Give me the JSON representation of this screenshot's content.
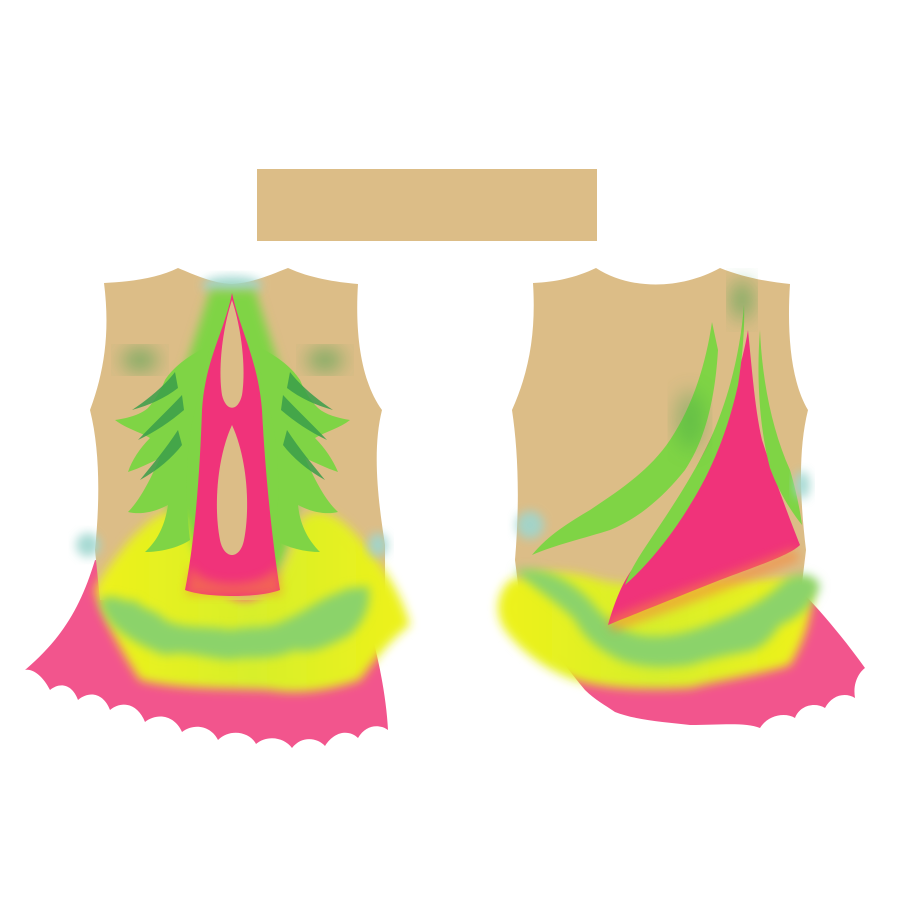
{
  "design": {
    "colors": {
      "background": "#ffffff",
      "skin": "#dcbd87",
      "neon_pink": "#f0337a",
      "skirt_pink": "#f2558d",
      "lime_green": "#7fd445",
      "light_green": "#8bd36a",
      "dark_green": "#3a9e4a",
      "neon_yellow": "#eef21a",
      "glow_teal": "#9ed6cf",
      "glow_orange": "#f5883a"
    },
    "items": [
      {
        "name": "accessory-band",
        "color": "skin"
      },
      {
        "name": "front-leotard",
        "view": "front",
        "colors": [
          "skin",
          "neon_pink",
          "lime_green",
          "neon_yellow",
          "skirt_pink"
        ]
      },
      {
        "name": "back-leotard",
        "view": "back",
        "colors": [
          "skin",
          "neon_pink",
          "lime_green",
          "neon_yellow",
          "skirt_pink"
        ]
      }
    ]
  }
}
